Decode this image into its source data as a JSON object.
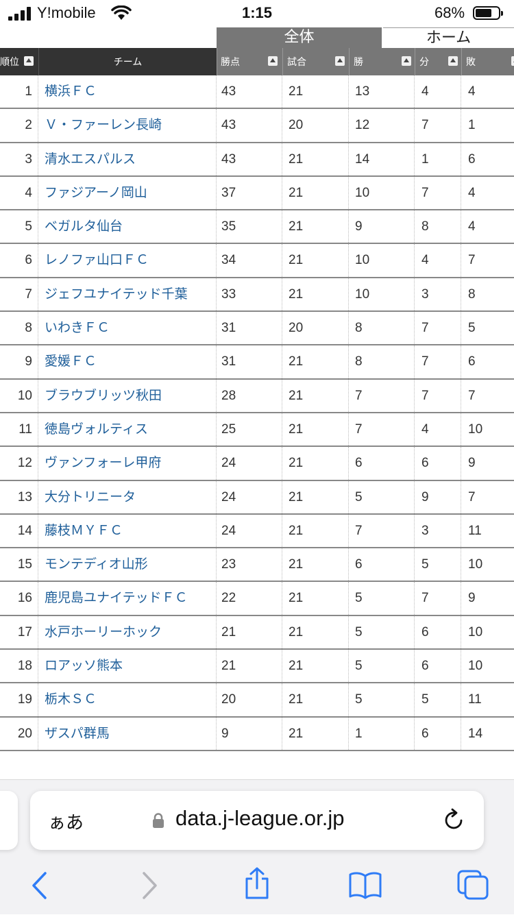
{
  "status_bar": {
    "carrier": "Y!mobile",
    "time": "1:15",
    "battery": "68%"
  },
  "tabs": {
    "all": "全体",
    "home": "ホーム"
  },
  "table": {
    "headers": {
      "rank": "順位",
      "team": "チーム",
      "points": "勝点",
      "played": "試合",
      "wins": "勝",
      "draws": "分",
      "losses": "敗"
    },
    "rows": [
      {
        "rank": "1",
        "team": "横浜ＦＣ",
        "points": "43",
        "played": "21",
        "wins": "13",
        "draws": "4",
        "losses": "4"
      },
      {
        "rank": "2",
        "team": "Ｖ・ファーレン長崎",
        "points": "43",
        "played": "20",
        "wins": "12",
        "draws": "7",
        "losses": "1"
      },
      {
        "rank": "3",
        "team": "清水エスパルス",
        "points": "43",
        "played": "21",
        "wins": "14",
        "draws": "1",
        "losses": "6"
      },
      {
        "rank": "4",
        "team": "ファジアーノ岡山",
        "points": "37",
        "played": "21",
        "wins": "10",
        "draws": "7",
        "losses": "4"
      },
      {
        "rank": "5",
        "team": "ベガルタ仙台",
        "points": "35",
        "played": "21",
        "wins": "9",
        "draws": "8",
        "losses": "4"
      },
      {
        "rank": "6",
        "team": "レノファ山口ＦＣ",
        "points": "34",
        "played": "21",
        "wins": "10",
        "draws": "4",
        "losses": "7"
      },
      {
        "rank": "7",
        "team": "ジェフユナイテッド千葉",
        "points": "33",
        "played": "21",
        "wins": "10",
        "draws": "3",
        "losses": "8"
      },
      {
        "rank": "8",
        "team": "いわきＦＣ",
        "points": "31",
        "played": "20",
        "wins": "8",
        "draws": "7",
        "losses": "5"
      },
      {
        "rank": "9",
        "team": "愛媛ＦＣ",
        "points": "31",
        "played": "21",
        "wins": "8",
        "draws": "7",
        "losses": "6"
      },
      {
        "rank": "10",
        "team": "ブラウブリッツ秋田",
        "points": "28",
        "played": "21",
        "wins": "7",
        "draws": "7",
        "losses": "7"
      },
      {
        "rank": "11",
        "team": "徳島ヴォルティス",
        "points": "25",
        "played": "21",
        "wins": "7",
        "draws": "4",
        "losses": "10"
      },
      {
        "rank": "12",
        "team": "ヴァンフォーレ甲府",
        "points": "24",
        "played": "21",
        "wins": "6",
        "draws": "6",
        "losses": "9"
      },
      {
        "rank": "13",
        "team": "大分トリニータ",
        "points": "24",
        "played": "21",
        "wins": "5",
        "draws": "9",
        "losses": "7"
      },
      {
        "rank": "14",
        "team": "藤枝ＭＹＦＣ",
        "points": "24",
        "played": "21",
        "wins": "7",
        "draws": "3",
        "losses": "11"
      },
      {
        "rank": "15",
        "team": "モンテディオ山形",
        "points": "23",
        "played": "21",
        "wins": "6",
        "draws": "5",
        "losses": "10"
      },
      {
        "rank": "16",
        "team": "鹿児島ユナイテッドＦＣ",
        "points": "22",
        "played": "21",
        "wins": "5",
        "draws": "7",
        "losses": "9"
      },
      {
        "rank": "17",
        "team": "水戸ホーリーホック",
        "points": "21",
        "played": "21",
        "wins": "5",
        "draws": "6",
        "losses": "10"
      },
      {
        "rank": "18",
        "team": "ロアッソ熊本",
        "points": "21",
        "played": "21",
        "wins": "5",
        "draws": "6",
        "losses": "10"
      },
      {
        "rank": "19",
        "team": "栃木ＳＣ",
        "points": "20",
        "played": "21",
        "wins": "5",
        "draws": "5",
        "losses": "11"
      },
      {
        "rank": "20",
        "team": "ザスパ群馬",
        "points": "9",
        "played": "21",
        "wins": "1",
        "draws": "6",
        "losses": "14"
      }
    ]
  },
  "browser": {
    "text_size_label": "ぁあ",
    "url": "data.j-league.or.jp"
  },
  "colors": {
    "team_link": "#1f5f9a",
    "header_dark": "#333333",
    "header_gray": "#777777",
    "ios_blue": "#2f7cf6"
  },
  "icons": [
    "lock-icon",
    "reload-icon",
    "back-icon",
    "forward-icon",
    "share-icon",
    "bookmarks-icon",
    "tabs-icon",
    "wifi-icon",
    "signal-icon",
    "battery-icon",
    "sort-icon"
  ]
}
